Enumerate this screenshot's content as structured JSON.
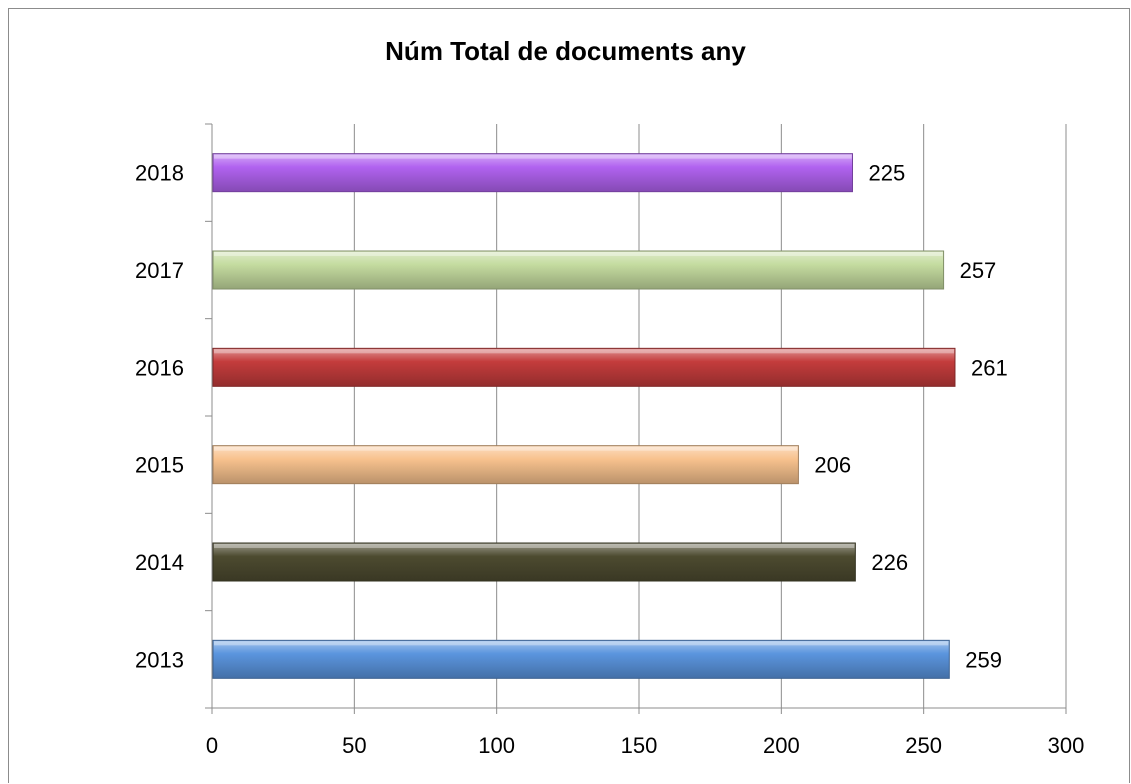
{
  "chart_data": {
    "type": "bar",
    "orientation": "horizontal",
    "title": "Núm Total de documents any",
    "xlabel": "",
    "ylabel": "",
    "categories": [
      "2013",
      "2014",
      "2015",
      "2016",
      "2017",
      "2018"
    ],
    "values": [
      259,
      226,
      206,
      261,
      257,
      225
    ],
    "data_labels": [
      "259",
      "226",
      "206",
      "261",
      "257",
      "225"
    ],
    "colors": [
      "#5b95de",
      "#4d4b30",
      "#f8c28e",
      "#c43c3c",
      "#c5dca0",
      "#b163f0"
    ],
    "xlim": [
      0,
      300
    ],
    "xticks": [
      "0",
      "50",
      "100",
      "150",
      "200",
      "250",
      "300"
    ],
    "grid": "vertical",
    "legend": "none"
  }
}
